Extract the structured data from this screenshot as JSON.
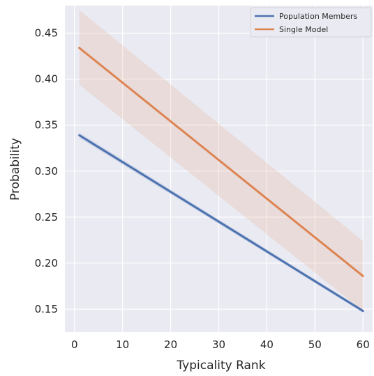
{
  "chart_data": {
    "type": "line",
    "title": "",
    "xlabel": "Typicality Rank",
    "ylabel": "Probability",
    "xlim": [
      -2,
      62
    ],
    "ylim": [
      0.125,
      0.48
    ],
    "xticks": [
      0,
      10,
      20,
      30,
      40,
      50,
      60
    ],
    "yticks": [
      0.15,
      0.2,
      0.25,
      0.3,
      0.35,
      0.4,
      0.45
    ],
    "ytick_labels": [
      "0.15",
      "0.20",
      "0.25",
      "0.30",
      "0.35",
      "0.40",
      "0.45"
    ],
    "grid": true,
    "legend_position": "top-right",
    "series": [
      {
        "name": "Population Members",
        "color": "#4c72b0",
        "x": [
          1,
          60
        ],
        "y": [
          0.339,
          0.148
        ],
        "ci_lower": [
          0.336,
          0.146
        ],
        "ci_upper": [
          0.342,
          0.15
        ]
      },
      {
        "name": "Single Model",
        "color": "#dd8452",
        "x": [
          1,
          60
        ],
        "y": [
          0.434,
          0.186
        ],
        "ci_lower": [
          0.394,
          0.148
        ],
        "ci_upper": [
          0.475,
          0.224
        ]
      }
    ]
  }
}
